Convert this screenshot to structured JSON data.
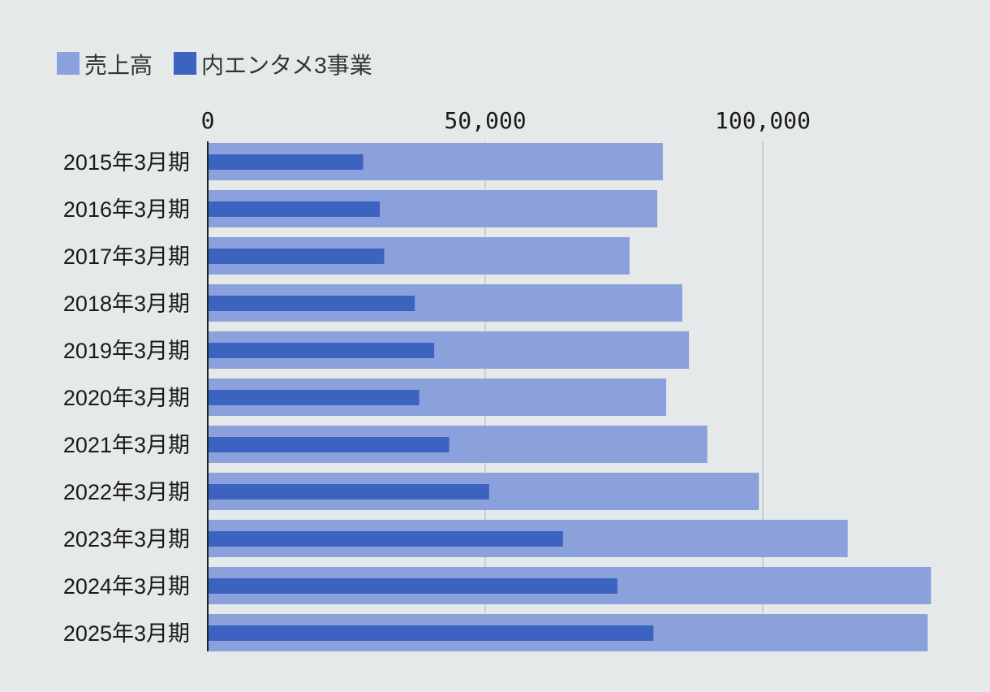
{
  "chart_data": {
    "type": "bar",
    "orientation": "horizontal",
    "title": "",
    "xlabel": "",
    "ylabel": "",
    "xlim": [
      0,
      130000
    ],
    "xticks": [
      0,
      50000,
      100000
    ],
    "xtick_labels": [
      "0",
      "50,000",
      "100,000"
    ],
    "grid": true,
    "legend_position": "top-left",
    "categories": [
      "2015年3月期",
      "2016年3月期",
      "2017年3月期",
      "2018年3月期",
      "2019年3月期",
      "2020年3月期",
      "2021年3月期",
      "2022年3月期",
      "2023年3月期",
      "2024年3月期",
      "2025年3月期"
    ],
    "series": [
      {
        "name": "売上高",
        "color": "#8ba1db",
        "values": [
          82000,
          81000,
          76000,
          85500,
          86700,
          82600,
          90000,
          99300,
          115300,
          130300,
          129700
        ]
      },
      {
        "name": "内エンタメ3事業",
        "color": "#3d63c1",
        "values": [
          28000,
          31000,
          31800,
          37300,
          40800,
          38100,
          43500,
          50700,
          64000,
          73800,
          80300
        ]
      }
    ]
  }
}
